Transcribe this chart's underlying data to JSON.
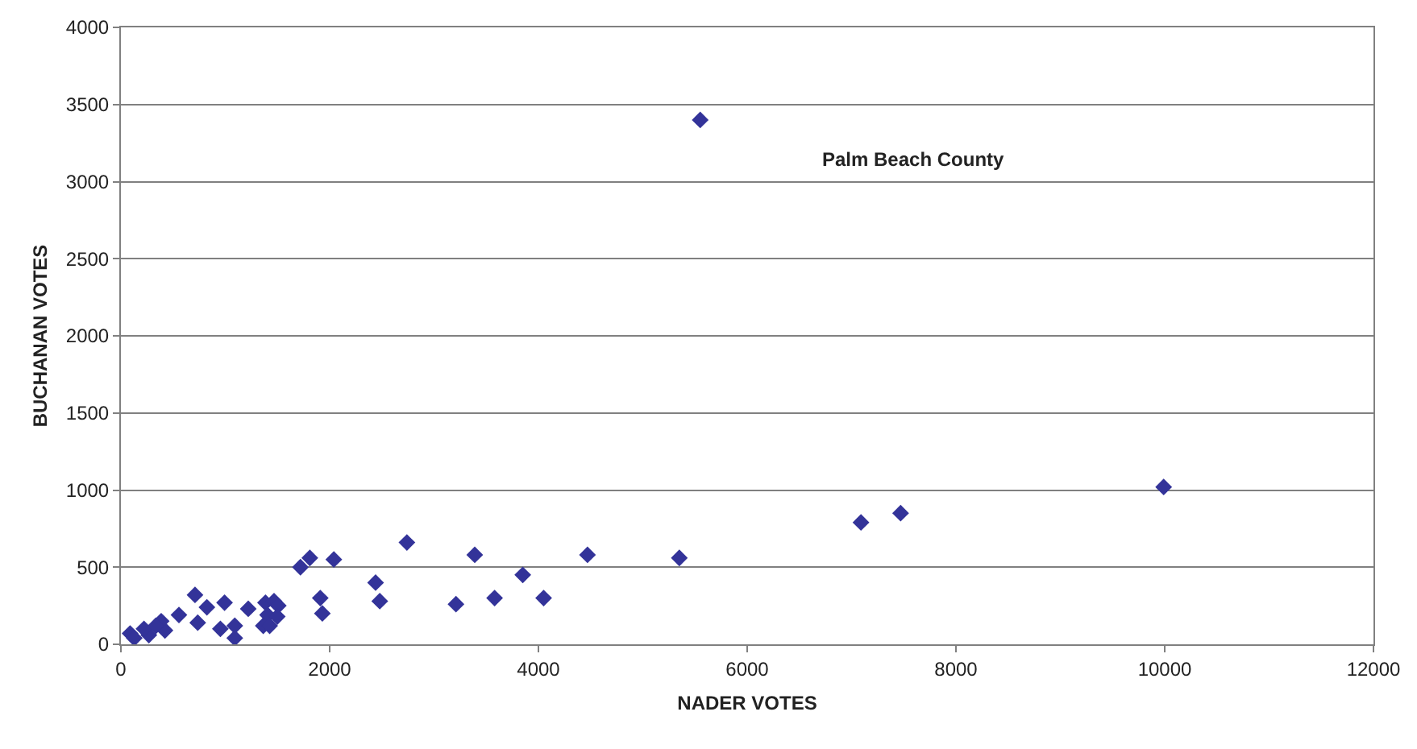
{
  "chart_data": {
    "type": "scatter",
    "xlabel": "NADER VOTES",
    "ylabel": "BUCHANAN VOTES",
    "annotations": [
      "Palm Beach County"
    ],
    "x": [
      5550,
      9990,
      7470,
      7090,
      5350,
      4470,
      4050,
      3850,
      3580,
      3390,
      3210,
      2740,
      2480,
      2440,
      2040,
      1930,
      1910,
      1810,
      1720,
      710,
      556,
      736,
      824,
      993,
      953,
      1091,
      1091,
      1220,
      1385,
      1467,
      1508,
      1405,
      1498,
      1364,
      1425,
      422,
      386,
      268,
      88,
      128,
      221,
      335
    ],
    "series": [
      {
        "color": "#333399",
        "values": [
          3400,
          1020,
          850,
          790,
          560,
          580,
          300,
          450,
          300,
          580,
          260,
          660,
          280,
          400,
          550,
          200,
          300,
          560,
          500,
          320,
          190,
          140,
          240,
          270,
          100,
          120,
          40,
          230,
          270,
          280,
          250,
          190,
          180,
          120,
          120,
          90,
          150,
          60,
          70,
          40,
          100,
          120
        ]
      }
    ],
    "xlim": [
      0,
      12000
    ],
    "xticks": [
      0,
      2000,
      4000,
      6000,
      8000,
      10000,
      12000
    ],
    "ylim": [
      0,
      4000
    ],
    "yticks": [
      0,
      500,
      1000,
      1500,
      2000,
      2500,
      3000,
      3500,
      4000
    ],
    "grid": "y",
    "marker": "diamond"
  }
}
